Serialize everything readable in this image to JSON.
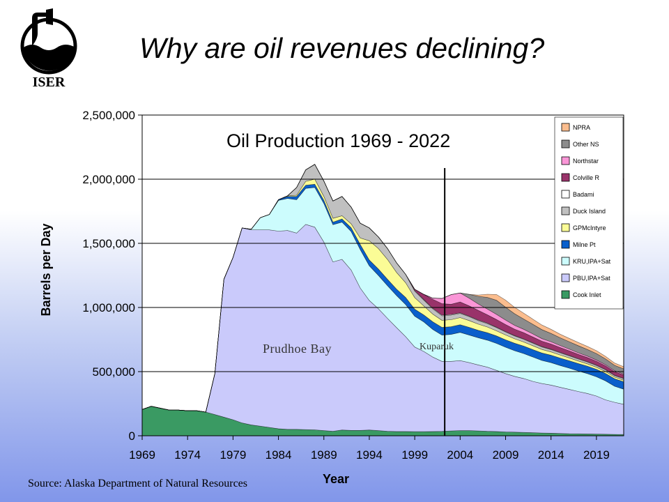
{
  "header": {
    "title": "Why are oil revenues declining?",
    "logo_text": "ISER"
  },
  "source": "Source: Alaska Department of Natural Resources",
  "chart_data": {
    "type": "area",
    "stacked": true,
    "title": "Oil Production 1969 - 2022",
    "xlabel": "Year",
    "ylabel": "Barrels per Day",
    "ylim": [
      0,
      2500000
    ],
    "yticks": [
      0,
      500000,
      1000000,
      1500000,
      2000000,
      2500000
    ],
    "ytick_labels": [
      "0",
      "500,000",
      "1,000,000",
      "1,500,000",
      "2,000,000",
      "2,500,000"
    ],
    "xticks": [
      1969,
      1974,
      1979,
      1984,
      1989,
      1994,
      1999,
      2004,
      2009,
      2014,
      2019
    ],
    "xlim": [
      1969,
      2022
    ],
    "grid": "horizontal",
    "legend_position": "top-right",
    "annotations": [
      {
        "text": "Prudhoe Bay",
        "x": 1986,
        "y": 680000
      },
      {
        "text": "Kuparuk",
        "x": 2004,
        "y": 690000
      }
    ],
    "reference_line": {
      "x": 2002.3
    },
    "x": [
      1969,
      1970,
      1971,
      1972,
      1973,
      1974,
      1975,
      1976,
      1977,
      1978,
      1979,
      1980,
      1981,
      1982,
      1983,
      1984,
      1985,
      1986,
      1987,
      1988,
      1989,
      1990,
      1991,
      1992,
      1993,
      1994,
      1995,
      1996,
      1997,
      1998,
      1999,
      2000,
      2001,
      2002,
      2003,
      2004,
      2005,
      2006,
      2007,
      2008,
      2009,
      2010,
      2011,
      2012,
      2013,
      2014,
      2015,
      2016,
      2017,
      2018,
      2019,
      2020,
      2021,
      2022
    ],
    "series": [
      {
        "name": "Cook Inlet",
        "color": "#3a9a63",
        "values": [
          205000,
          230000,
          215000,
          200000,
          200000,
          195000,
          195000,
          185000,
          165000,
          145000,
          125000,
          100000,
          85000,
          75000,
          65000,
          55000,
          50000,
          50000,
          48000,
          46000,
          40000,
          35000,
          45000,
          42000,
          42000,
          45000,
          40000,
          35000,
          33000,
          33000,
          32000,
          32000,
          33000,
          34000,
          38000,
          40000,
          40000,
          38000,
          35000,
          33000,
          30000,
          28000,
          26000,
          24000,
          22000,
          20000,
          18000,
          16000,
          15000,
          14000,
          13000,
          12000,
          11000,
          10000
        ]
      },
      {
        "name": "PBU,IPA+Sat",
        "color": "#cacafb",
        "values": [
          0,
          0,
          0,
          0,
          0,
          0,
          0,
          0,
          320000,
          1075000,
          1265000,
          1520000,
          1520000,
          1530000,
          1540000,
          1540000,
          1550000,
          1530000,
          1600000,
          1580000,
          1470000,
          1320000,
          1330000,
          1250000,
          1110000,
          1010000,
          950000,
          880000,
          810000,
          740000,
          660000,
          625000,
          580000,
          546000,
          542000,
          546000,
          530000,
          514000,
          500000,
          477000,
          455000,
          435000,
          420000,
          400000,
          385000,
          375000,
          360000,
          346000,
          330000,
          316000,
          297000,
          268000,
          250000,
          235000
        ]
      },
      {
        "name": "KRU,IPA+Sat",
        "color": "#ccfcfd",
        "values": [
          0,
          0,
          0,
          0,
          0,
          0,
          0,
          0,
          0,
          0,
          0,
          0,
          5000,
          95000,
          120000,
          240000,
          250000,
          260000,
          280000,
          310000,
          300000,
          290000,
          290000,
          300000,
          300000,
          270000,
          260000,
          255000,
          250000,
          250000,
          240000,
          230000,
          215000,
          205000,
          210000,
          220000,
          215000,
          212000,
          210000,
          210000,
          205000,
          200000,
          195000,
          190000,
          180000,
          175000,
          170000,
          165000,
          160000,
          155000,
          150000,
          148000,
          125000,
          118000
        ]
      },
      {
        "name": "Milne Pt",
        "color": "#0a5fcb",
        "values": [
          0,
          0,
          0,
          0,
          0,
          0,
          0,
          0,
          0,
          0,
          0,
          0,
          0,
          0,
          0,
          5000,
          15000,
          25000,
          25000,
          25000,
          25000,
          20000,
          25000,
          30000,
          40000,
          45000,
          50000,
          50000,
          50000,
          55000,
          55000,
          55000,
          60000,
          60000,
          60000,
          60000,
          60000,
          58000,
          58000,
          58000,
          58000,
          58000,
          58000,
          58000,
          58000,
          58000,
          58000,
          58000,
          58000,
          58000,
          58000,
          58000,
          58000,
          58000
        ]
      },
      {
        "name": "GPMcIntyre",
        "color": "#fbfc96",
        "values": [
          0,
          0,
          0,
          0,
          0,
          0,
          0,
          0,
          0,
          0,
          0,
          0,
          0,
          0,
          0,
          0,
          5000,
          10000,
          30000,
          40000,
          30000,
          30000,
          25000,
          30000,
          50000,
          150000,
          160000,
          155000,
          130000,
          115000,
          90000,
          70000,
          60000,
          55000,
          55000,
          55000,
          53000,
          48000,
          45000,
          40000,
          38000,
          35000,
          32000,
          30000,
          28000,
          26000,
          24000,
          22000,
          20000,
          18000,
          16000,
          15000,
          13000,
          12000
        ]
      },
      {
        "name": "Duck Island",
        "color": "#c0c0c0",
        "values": [
          0,
          0,
          0,
          0,
          0,
          0,
          0,
          0,
          0,
          0,
          0,
          0,
          0,
          0,
          0,
          0,
          0,
          60000,
          90000,
          115000,
          120000,
          135000,
          150000,
          130000,
          115000,
          100000,
          90000,
          85000,
          75000,
          65000,
          50000,
          45000,
          40000,
          35000,
          35000,
          32000,
          30000,
          28000,
          26000,
          25000,
          23000,
          22000,
          21000,
          20000,
          19000,
          18000,
          17000,
          16000,
          15000,
          14000,
          14000,
          13000,
          12000,
          12000
        ]
      },
      {
        "name": "Badami",
        "color": "#ffffff",
        "values": [
          0,
          0,
          0,
          0,
          0,
          0,
          0,
          0,
          0,
          0,
          0,
          0,
          0,
          0,
          0,
          0,
          0,
          0,
          0,
          0,
          0,
          0,
          0,
          0,
          0,
          0,
          0,
          0,
          0,
          0,
          5000,
          5000,
          5000,
          5000,
          5000,
          5000,
          4000,
          4000,
          4000,
          3000,
          3000,
          3000,
          3000,
          3000,
          3000,
          3000,
          3000,
          3000,
          3000,
          3000,
          3000,
          3000,
          3000,
          3000
        ]
      },
      {
        "name": "Colville R",
        "color": "#99336a",
        "values": [
          0,
          0,
          0,
          0,
          0,
          0,
          0,
          0,
          0,
          0,
          0,
          0,
          0,
          0,
          0,
          0,
          0,
          0,
          0,
          0,
          0,
          0,
          0,
          0,
          0,
          0,
          0,
          0,
          0,
          0,
          10000,
          40000,
          70000,
          90000,
          80000,
          85000,
          80000,
          75000,
          65000,
          60000,
          55000,
          50000,
          48000,
          45000,
          42000,
          40000,
          38000,
          36000,
          34000,
          32000,
          30000,
          28000,
          27000,
          26000
        ]
      },
      {
        "name": "Northstar",
        "color": "#fa96d7",
        "values": [
          0,
          0,
          0,
          0,
          0,
          0,
          0,
          0,
          0,
          0,
          0,
          0,
          0,
          0,
          0,
          0,
          0,
          0,
          0,
          0,
          0,
          0,
          0,
          0,
          0,
          0,
          0,
          0,
          0,
          0,
          0,
          0,
          10000,
          40000,
          75000,
          70000,
          60000,
          50000,
          45000,
          40000,
          35000,
          30000,
          27000,
          24000,
          20000,
          18000,
          16000,
          14000,
          12000,
          11000,
          10000,
          9000,
          8000,
          7000
        ]
      },
      {
        "name": "Other NS",
        "color": "#8c8c8c",
        "values": [
          0,
          0,
          0,
          0,
          0,
          0,
          0,
          0,
          0,
          0,
          0,
          0,
          0,
          0,
          0,
          0,
          0,
          0,
          0,
          0,
          0,
          0,
          0,
          0,
          0,
          0,
          0,
          0,
          0,
          0,
          0,
          0,
          0,
          0,
          0,
          0,
          30000,
          60000,
          90000,
          110000,
          100000,
          90000,
          80000,
          75000,
          70000,
          65000,
          60000,
          57000,
          55000,
          52000,
          50000,
          45000,
          42000,
          40000
        ]
      },
      {
        "name": "NPRA",
        "color": "#fbbd8e",
        "values": [
          0,
          0,
          0,
          0,
          0,
          0,
          0,
          0,
          0,
          0,
          0,
          0,
          0,
          0,
          0,
          0,
          0,
          0,
          0,
          0,
          0,
          0,
          0,
          0,
          0,
          0,
          0,
          0,
          0,
          0,
          0,
          0,
          0,
          0,
          0,
          0,
          0,
          10000,
          25000,
          45000,
          55000,
          50000,
          45000,
          40000,
          36000,
          32000,
          28000,
          26000,
          25000,
          24000,
          22000,
          20000,
          18000,
          17000
        ]
      }
    ]
  }
}
